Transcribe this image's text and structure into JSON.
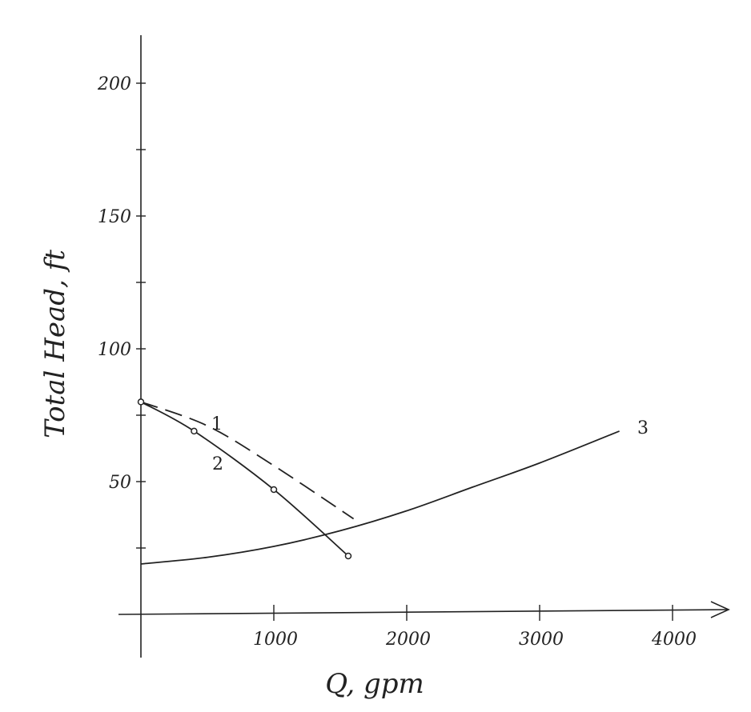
{
  "chart_data": {
    "type": "line",
    "title": "",
    "xlabel": "Q, gpm",
    "ylabel": "Total Head, ft",
    "xlim": [
      0,
      4400
    ],
    "ylim": [
      0,
      220
    ],
    "xticks": [
      1000,
      2000,
      3000,
      4000
    ],
    "xtick_labels": [
      "1000",
      "2000",
      "3000",
      "4000"
    ],
    "yticks": [
      50,
      100,
      150,
      200
    ],
    "ytick_labels": [
      "50",
      "100",
      "150",
      "200"
    ],
    "grid": false,
    "legend": "none",
    "series": [
      {
        "name": "1",
        "style": "dashed",
        "markers": false,
        "x": [
          0,
          500,
          1000,
          1600
        ],
        "y": [
          80,
          71,
          56,
          36
        ]
      },
      {
        "name": "2",
        "style": "solid",
        "markers": true,
        "x": [
          0,
          400,
          1000,
          1560
        ],
        "y": [
          80,
          69,
          47,
          22
        ]
      },
      {
        "name": "3",
        "style": "solid",
        "markers": false,
        "x": [
          0,
          500,
          1000,
          1500,
          2000,
          2500,
          3000,
          3600
        ],
        "y": [
          19,
          21.5,
          25.6,
          31.5,
          39,
          48,
          57,
          69
        ]
      }
    ],
    "colors": {
      "ink": "#222222"
    }
  }
}
